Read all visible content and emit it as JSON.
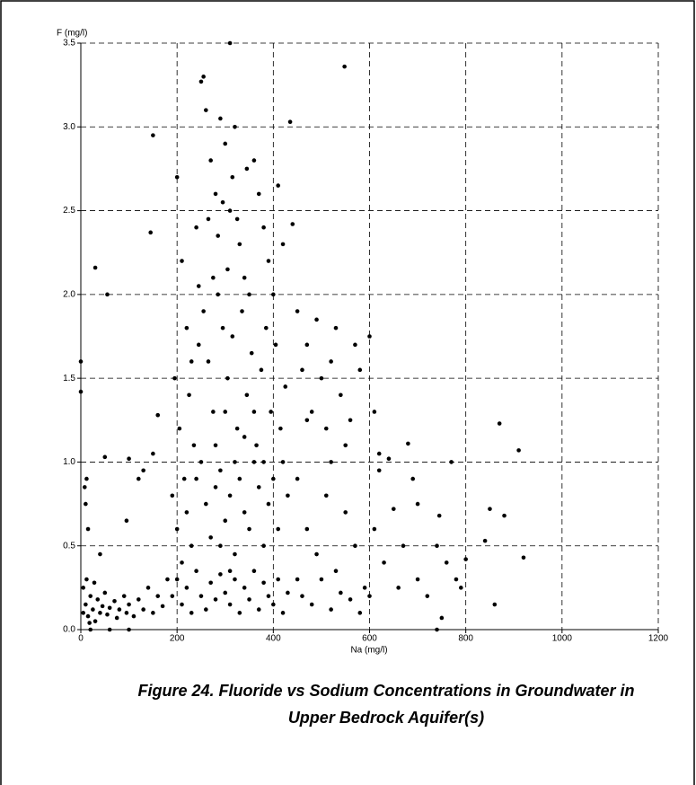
{
  "chart_data": {
    "type": "scatter",
    "title": "Figure 24. Fluoride vs Sodium Concentrations in Groundwater in",
    "subtitle": "Upper Bedrock Aquifer(s)",
    "xlabel": "Na (mg/l)",
    "ylabel": "F (mg/l)",
    "color": "#000000",
    "grid": true,
    "xlim": [
      0,
      1200
    ],
    "xticks": [
      0,
      200,
      400,
      600,
      800,
      1000,
      1200
    ],
    "ylim": [
      0,
      3.5
    ],
    "yticks": [
      {
        "value": 0,
        "label": "0.0"
      },
      0.5,
      {
        "value": 1,
        "label": "1.0"
      },
      1.5,
      {
        "value": 2,
        "label": "2.0"
      },
      2.5,
      {
        "value": 3,
        "label": "3.0"
      },
      3.5
    ],
    "x": [
      5,
      10,
      15,
      20,
      25,
      30,
      35,
      40,
      45,
      50,
      55,
      60,
      70,
      75,
      80,
      90,
      95,
      100,
      110,
      120,
      130,
      140,
      150,
      160,
      170,
      180,
      5,
      12,
      18,
      28,
      8,
      12,
      15,
      10,
      40,
      50,
      95,
      120,
      100,
      130,
      160,
      150,
      20,
      60,
      100,
      200,
      210,
      220,
      230,
      240,
      250,
      255,
      260,
      270,
      280,
      290,
      300,
      310,
      320,
      330,
      340,
      350,
      360,
      370,
      380,
      390,
      400,
      410,
      420,
      435,
      440,
      195,
      205,
      215,
      225,
      235,
      245,
      255,
      265,
      275,
      285,
      295,
      305,
      315,
      325,
      335,
      345,
      355,
      365,
      375,
      385,
      395,
      405,
      415,
      425,
      190,
      200,
      210,
      220,
      230,
      240,
      250,
      260,
      270,
      280,
      290,
      300,
      310,
      320,
      330,
      340,
      350,
      360,
      370,
      380,
      390,
      400,
      410,
      420,
      430,
      190,
      200,
      210,
      220,
      230,
      240,
      250,
      260,
      270,
      280,
      290,
      300,
      310,
      320,
      330,
      340,
      350,
      360,
      370,
      380,
      390,
      400,
      410,
      420,
      430,
      275,
      285,
      295,
      305,
      315,
      265,
      245,
      325,
      345,
      300,
      320,
      280,
      310,
      290,
      340,
      360,
      380,
      450,
      460,
      470,
      480,
      490,
      500,
      510,
      520,
      530,
      540,
      550,
      560,
      570,
      580,
      600,
      610,
      620,
      450,
      470,
      490,
      510,
      530,
      550,
      570,
      590,
      610,
      630,
      650,
      670,
      690,
      700,
      720,
      740,
      760,
      780,
      800,
      680,
      700,
      620,
      640,
      660,
      460,
      480,
      500,
      520,
      540,
      560,
      580,
      600,
      450,
      470,
      520,
      770,
      790,
      745,
      310,
      548,
      0,
      0,
      30,
      55,
      150,
      145,
      870,
      910,
      920,
      750,
      740,
      860,
      840,
      880,
      850
    ],
    "values": [
      0.1,
      0.15,
      0.08,
      0.2,
      0.12,
      0.05,
      0.18,
      0.1,
      0.14,
      0.22,
      0.09,
      0.13,
      0.17,
      0.07,
      0.12,
      0.2,
      0.1,
      0.15,
      0.08,
      0.18,
      0.12,
      0.25,
      0.1,
      0.2,
      0.14,
      0.3,
      0.25,
      0.3,
      0.04,
      0.28,
      0.85,
      0.9,
      0.6,
      0.75,
      0.45,
      1.03,
      0.65,
      0.9,
      1.02,
      0.95,
      1.28,
      1.05,
      0,
      0,
      0,
      2.7,
      2.2,
      1.8,
      1.6,
      2.4,
      3.27,
      3.3,
      3.1,
      2.8,
      2.6,
      3.05,
      2.9,
      2.5,
      3.0,
      2.3,
      2.1,
      2.0,
      2.8,
      2.6,
      2.4,
      2.2,
      2.0,
      2.65,
      2.3,
      3.03,
      2.42,
      1.5,
      1.2,
      0.9,
      1.4,
      1.1,
      1.7,
      1.9,
      1.6,
      1.3,
      2.0,
      1.8,
      1.5,
      1.75,
      1.2,
      1.9,
      1.4,
      1.65,
      1.1,
      1.55,
      1.8,
      1.3,
      1.7,
      1.2,
      1.45,
      0.8,
      0.6,
      0.4,
      0.7,
      0.5,
      0.9,
      1.0,
      0.75,
      0.55,
      0.85,
      0.95,
      0.65,
      0.8,
      0.45,
      0.9,
      0.7,
      0.6,
      1.0,
      0.85,
      0.5,
      0.75,
      0.9,
      0.6,
      1.0,
      0.8,
      0.2,
      0.3,
      0.15,
      0.25,
      0.1,
      0.35,
      0.2,
      0.12,
      0.28,
      0.18,
      0.33,
      0.22,
      0.15,
      0.3,
      0.1,
      0.25,
      0.18,
      0.35,
      0.12,
      0.28,
      0.2,
      0.15,
      0.3,
      0.1,
      0.22,
      2.1,
      2.35,
      2.55,
      2.15,
      2.7,
      2.45,
      2.05,
      2.45,
      2.75,
      1.3,
      1.0,
      1.1,
      0.35,
      0.5,
      1.15,
      1.3,
      1.0,
      1.9,
      1.55,
      1.7,
      1.3,
      1.85,
      1.5,
      1.2,
      1.6,
      1.8,
      1.4,
      1.1,
      1.25,
      1.7,
      1.55,
      1.75,
      1.3,
      1.05,
      0.9,
      0.6,
      0.45,
      0.8,
      0.35,
      0.7,
      0.5,
      0.25,
      0.6,
      0.4,
      0.72,
      0.5,
      0.9,
      0.3,
      0.2,
      0.5,
      0.4,
      0.3,
      0.42,
      1.11,
      0.75,
      0.95,
      1.02,
      0.25,
      0.2,
      0.15,
      0.3,
      0.12,
      0.22,
      0.18,
      0.1,
      0.2,
      0.3,
      1.25,
      1.0,
      1.0,
      0.25,
      0.68,
      3.5,
      3.36,
      1.6,
      1.42,
      2.16,
      2.0,
      2.95,
      2.37,
      1.23,
      1.07,
      0.43,
      0.07,
      0,
      0.15,
      0.53,
      0.68,
      0.72
    ]
  }
}
